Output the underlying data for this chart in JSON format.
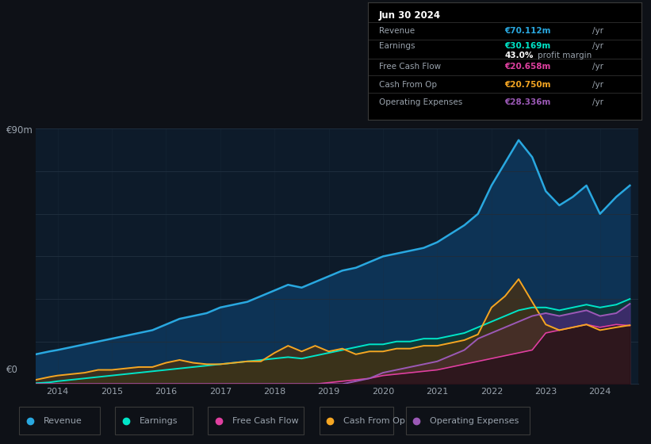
{
  "bg_color": "#0e1117",
  "plot_bg_color": "#0d1b2a",
  "grid_color": "#1e2d3d",
  "text_color": "#9aa3ad",
  "white_color": "#ffffff",
  "y_label": "€90m",
  "y_zero_label": "€0",
  "revenue_color": "#29a8e0",
  "earnings_color": "#00e5c8",
  "fcf_color": "#e040a0",
  "cashfromop_color": "#f5a623",
  "opex_color": "#9b59b6",
  "info_box": {
    "date": "Jun 30 2024",
    "revenue_label": "Revenue",
    "revenue_value": "€70.112m",
    "earnings_label": "Earnings",
    "earnings_value": "€30.169m",
    "margin_value": "43.0%",
    "margin_label": "profit margin",
    "fcf_label": "Free Cash Flow",
    "fcf_value": "€20.658m",
    "cashop_label": "Cash From Op",
    "cashop_value": "€20.750m",
    "opex_label": "Operating Expenses",
    "opex_value": "€28.336m"
  },
  "legend": [
    {
      "label": "Revenue",
      "color": "#29a8e0"
    },
    {
      "label": "Earnings",
      "color": "#00e5c8"
    },
    {
      "label": "Free Cash Flow",
      "color": "#e040a0"
    },
    {
      "label": "Cash From Op",
      "color": "#f5a623"
    },
    {
      "label": "Operating Expenses",
      "color": "#9b59b6"
    }
  ],
  "years": [
    2013.6,
    2013.85,
    2014.0,
    2014.25,
    2014.5,
    2014.75,
    2015.0,
    2015.25,
    2015.5,
    2015.75,
    2016.0,
    2016.25,
    2016.5,
    2016.75,
    2017.0,
    2017.25,
    2017.5,
    2017.75,
    2018.0,
    2018.25,
    2018.5,
    2018.75,
    2019.0,
    2019.25,
    2019.5,
    2019.75,
    2020.0,
    2020.25,
    2020.5,
    2020.75,
    2021.0,
    2021.25,
    2021.5,
    2021.75,
    2022.0,
    2022.25,
    2022.5,
    2022.75,
    2023.0,
    2023.25,
    2023.5,
    2023.75,
    2024.0,
    2024.3,
    2024.55
  ],
  "revenue": [
    10.5,
    11.5,
    12,
    13,
    14,
    15,
    16,
    17,
    18,
    19,
    21,
    23,
    24,
    25,
    27,
    28,
    29,
    31,
    33,
    35,
    34,
    36,
    38,
    40,
    41,
    43,
    45,
    46,
    47,
    48,
    50,
    53,
    56,
    60,
    70,
    78,
    86,
    80,
    68,
    63,
    66,
    70,
    60,
    66,
    70
  ],
  "earnings": [
    0.3,
    0.6,
    1,
    1.5,
    2,
    2.5,
    3,
    3.5,
    4,
    4.5,
    5,
    5.5,
    6,
    6.5,
    7,
    7.5,
    8,
    8.5,
    9,
    9.5,
    9,
    10,
    11,
    12,
    13,
    14,
    14,
    15,
    15,
    16,
    16,
    17,
    18,
    20,
    22,
    24,
    26,
    27,
    27,
    26,
    27,
    28,
    27,
    28,
    30
  ],
  "fcf": [
    0,
    0,
    0,
    0,
    0,
    0,
    0,
    0,
    0,
    0,
    0,
    0,
    0,
    0,
    0,
    0,
    0,
    0,
    0,
    0,
    0,
    0,
    0.5,
    1,
    1.5,
    2,
    3,
    3.5,
    4,
    4.5,
    5,
    6,
    7,
    8,
    9,
    10,
    11,
    12,
    18,
    19,
    20,
    21,
    20,
    21,
    20.6
  ],
  "cashfromop": [
    1.5,
    2.5,
    3,
    3.5,
    4,
    5,
    5,
    5.5,
    6,
    6,
    7.5,
    8.5,
    7.5,
    7,
    7,
    7.5,
    8,
    8,
    11,
    13.5,
    11.5,
    13.5,
    11.5,
    12.5,
    10.5,
    11.5,
    11.5,
    12.5,
    12.5,
    13.5,
    13.5,
    14.5,
    15.5,
    17.5,
    27,
    31,
    37,
    29,
    21,
    19,
    20,
    21,
    19,
    20,
    20.75
  ],
  "opex": [
    0,
    0,
    0,
    0,
    0,
    0,
    0,
    0,
    0,
    0,
    0,
    0,
    0,
    0,
    0,
    0,
    0,
    0,
    0,
    0,
    0,
    0,
    0,
    0,
    1,
    2,
    4,
    5,
    6,
    7,
    8,
    10,
    12,
    16,
    18,
    20,
    22,
    24,
    25,
    24,
    25,
    26,
    24,
    25,
    28.3
  ],
  "ylim": [
    0,
    90
  ],
  "xlim": [
    2013.6,
    2024.7
  ]
}
